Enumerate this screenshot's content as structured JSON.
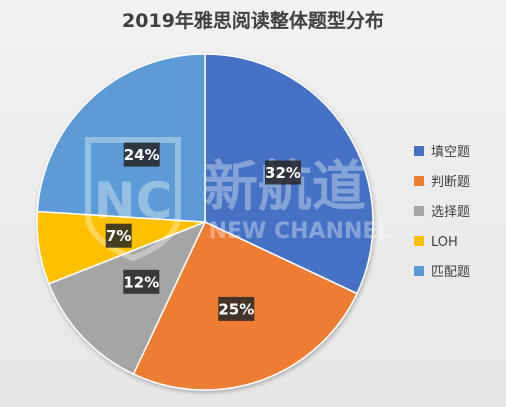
{
  "title": "2019年雅思阅读整体题型分布",
  "watermark": {
    "logo_text": "NC",
    "brand_cn": "新航道",
    "brand_en": "NEW CHANNEL"
  },
  "chart_data": {
    "type": "pie",
    "title": "2019年雅思阅读整体题型分布",
    "start_angle_deg": 0,
    "direction": "clockwise",
    "legend_position": "right",
    "slices": [
      {
        "name": "填空题",
        "value": 32,
        "label": "32%",
        "color": "#4472C4"
      },
      {
        "name": "判断题",
        "value": 25,
        "label": "25%",
        "color": "#ED7D31"
      },
      {
        "name": "选择题",
        "value": 12,
        "label": "12%",
        "color": "#A5A5A5"
      },
      {
        "name": "LOH",
        "value": 7,
        "label": "7%",
        "color": "#FFC000"
      },
      {
        "name": "匹配题",
        "value": 24,
        "label": "24%",
        "color": "#5B9BD5"
      }
    ]
  }
}
